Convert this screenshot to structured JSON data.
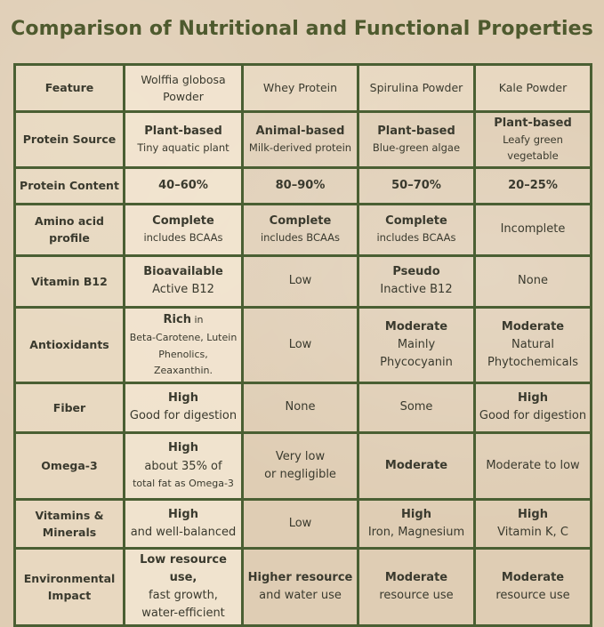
{
  "title": "Comparison of Nutritional and Functional Properties",
  "headers": [
    "Feature",
    "Wolffia globosa Powder",
    "Whey Protein",
    "Spirulina Powder",
    "Kale Powder"
  ],
  "rows": [
    {
      "feature": "Protein Source",
      "wolffia": {
        "main": "Plant-based",
        "sub": "Tiny aquatic plant"
      },
      "whey": {
        "main": "Animal-based",
        "sub": "Milk-derived protein"
      },
      "spirulina": {
        "main": "Plant-based",
        "sub": "Blue-green algae"
      },
      "kale": {
        "main": "Plant-based",
        "sub": "Leafy green vegetable"
      }
    },
    {
      "feature": "Protein Content",
      "wolffia": {
        "main": "40–60%"
      },
      "whey": {
        "main": "80–90%"
      },
      "spirulina": {
        "main": "50–70%"
      },
      "kale": {
        "main": "20–25%"
      }
    },
    {
      "feature": "Amino acid profile",
      "wolffia": {
        "main": "Complete",
        "sub": "includes BCAAs"
      },
      "whey": {
        "main": "Complete",
        "sub": "includes BCAAs"
      },
      "spirulina": {
        "main": "Complete",
        "sub": "includes BCAAs"
      },
      "kale": {
        "plain": "Incomplete"
      }
    },
    {
      "feature": "Vitamin B12",
      "wolffia": {
        "main": "Bioavailable",
        "plain": "Active B12"
      },
      "whey": {
        "plain": "Low"
      },
      "spirulina": {
        "main": "Pseudo",
        "plain": "Inactive B12"
      },
      "kale": {
        "plain": "None"
      }
    },
    {
      "feature": "Antioxidants",
      "wolffia": {
        "main": "Rich",
        "main_suffix": "in",
        "line2": "Beta-Carotene, Lutein",
        "line3": "Phenolics, Zeaxanthin."
      },
      "whey": {
        "plain": "Low"
      },
      "spirulina": {
        "main": "Moderate",
        "line2": "Mainly",
        "line3": "Phycocyanin"
      },
      "kale": {
        "main": "Moderate",
        "line2": "Natural",
        "line3": "Phytochemicals"
      }
    },
    {
      "feature": "Fiber",
      "wolffia": {
        "main": "High",
        "plain": "Good for digestion"
      },
      "whey": {
        "plain": "None"
      },
      "spirulina": {
        "plain": "Some"
      },
      "kale": {
        "main": "High",
        "plain": "Good for digestion"
      }
    },
    {
      "feature": "Omega-3",
      "wolffia": {
        "main": "High",
        "line2": "about 35% of",
        "line3": "total fat as Omega-3"
      },
      "whey": {
        "line2": "Very low",
        "line3": "or negligible"
      },
      "spirulina": {
        "main": "Moderate"
      },
      "kale": {
        "plain": "Moderate to low"
      }
    },
    {
      "feature": "Vitamins & Minerals",
      "wolffia": {
        "main": "High",
        "plain": "and well-balanced"
      },
      "whey": {
        "plain": "Low"
      },
      "spirulina": {
        "main": "High",
        "sub": "Iron, Magnesium"
      },
      "kale": {
        "main": "High",
        "sub": "Vitamin K, C"
      }
    },
    {
      "feature": "Environmental Impact",
      "wolffia": {
        "main": "Low resource use,",
        "line2": "fast growth,",
        "line3": "water-efficient"
      },
      "whey": {
        "main": "Higher resource",
        "plain": "and water use"
      },
      "spirulina": {
        "main": "Moderate",
        "plain": "resource use"
      },
      "kale": {
        "main": "Moderate",
        "plain": "resource use"
      }
    }
  ],
  "colors": {
    "background": "#dfcdb4",
    "border": "#4a5f33",
    "title": "#4e5a2e",
    "text": "#3a3a2e"
  }
}
